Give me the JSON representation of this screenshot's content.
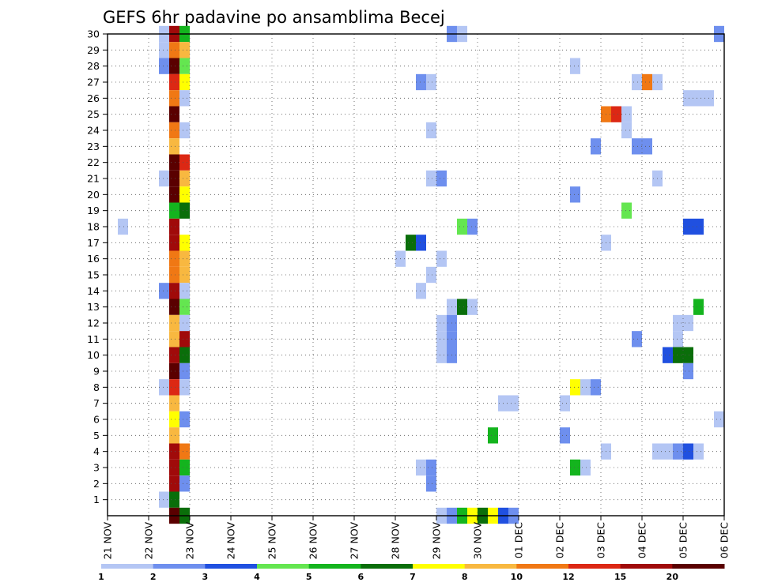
{
  "chart_data": {
    "type": "heatmap",
    "title": "GEFS 6hr padavine po ansamblima Becej",
    "xlabel": "",
    "ylabel": "",
    "x_tick_labels": [
      "21 NOV",
      "22 NOV",
      "23 NOV",
      "24 NOV",
      "25 NOV",
      "26 NOV",
      "27 NOV",
      "28 NOV",
      "29 NOV",
      "30 NOV",
      "01 DEC",
      "02 DEC",
      "03 DEC",
      "04 DEC",
      "05 DEC",
      "06 DEC"
    ],
    "x_range_days": [
      0,
      15
    ],
    "y_tick_labels": [
      "1",
      "2",
      "3",
      "4",
      "5",
      "6",
      "7",
      "8",
      "9",
      "10",
      "11",
      "12",
      "13",
      "14",
      "15",
      "16",
      "17",
      "18",
      "19",
      "20",
      "21",
      "22",
      "23",
      "24",
      "25",
      "26",
      "27",
      "28",
      "29",
      "30"
    ],
    "y_range": [
      0,
      30
    ],
    "step_days": 0.25,
    "grid": true,
    "colorbar": {
      "labels": [
        "1",
        "2",
        "3",
        "4",
        "5",
        "6",
        "7",
        "8",
        "10",
        "12",
        "15",
        "20"
      ],
      "colors": [
        "#b4c6f4",
        "#6e8fee",
        "#2050e0",
        "#64e650",
        "#14b41e",
        "#0a6e0a",
        "#ffff00",
        "#f8b840",
        "#f07814",
        "#dc2814",
        "#a00a0a",
        "#5a0000"
      ]
    },
    "cells": [
      [
        1.25,
        30,
        1
      ],
      [
        1.25,
        29,
        1
      ],
      [
        1.25,
        28,
        2
      ],
      [
        1.25,
        21,
        1
      ],
      [
        1.25,
        14,
        2
      ],
      [
        1.25,
        8,
        1
      ],
      [
        1.25,
        1,
        1
      ],
      [
        1.5,
        30,
        11
      ],
      [
        1.5,
        29,
        9
      ],
      [
        1.5,
        28,
        12
      ],
      [
        1.5,
        27,
        10
      ],
      [
        1.5,
        26,
        9
      ],
      [
        1.5,
        25,
        12
      ],
      [
        1.5,
        24,
        9
      ],
      [
        1.5,
        23,
        8
      ],
      [
        1.5,
        22,
        12
      ],
      [
        1.5,
        21,
        12
      ],
      [
        1.5,
        20,
        12
      ],
      [
        1.5,
        19,
        5
      ],
      [
        1.5,
        18,
        11
      ],
      [
        1.5,
        17,
        11
      ],
      [
        1.5,
        16,
        9
      ],
      [
        1.5,
        15,
        9
      ],
      [
        1.5,
        14,
        11
      ],
      [
        1.5,
        13,
        12
      ],
      [
        1.5,
        12,
        8
      ],
      [
        1.5,
        11,
        8
      ],
      [
        1.5,
        10,
        11
      ],
      [
        1.5,
        9,
        12
      ],
      [
        1.5,
        8,
        10
      ],
      [
        1.5,
        7,
        8
      ],
      [
        1.5,
        6,
        7
      ],
      [
        1.5,
        5,
        8
      ],
      [
        1.5,
        4,
        11
      ],
      [
        1.5,
        3,
        11
      ],
      [
        1.5,
        2,
        11
      ],
      [
        1.5,
        1,
        6
      ],
      [
        1.5,
        0,
        12
      ],
      [
        1.75,
        30,
        5
      ],
      [
        1.75,
        29,
        8
      ],
      [
        1.75,
        28,
        4
      ],
      [
        1.75,
        27,
        7
      ],
      [
        1.75,
        26,
        1
      ],
      [
        1.75,
        24,
        1
      ],
      [
        1.75,
        22,
        10
      ],
      [
        1.75,
        21,
        8
      ],
      [
        1.75,
        20,
        7
      ],
      [
        1.75,
        19,
        6
      ],
      [
        1.75,
        17,
        7
      ],
      [
        1.75,
        16,
        8
      ],
      [
        1.75,
        15,
        8
      ],
      [
        1.75,
        14,
        1
      ],
      [
        1.75,
        13,
        4
      ],
      [
        1.75,
        12,
        1
      ],
      [
        1.75,
        11,
        11
      ],
      [
        1.75,
        10,
        6
      ],
      [
        1.75,
        9,
        2
      ],
      [
        1.75,
        8,
        1
      ],
      [
        1.75,
        6,
        2
      ],
      [
        1.75,
        4,
        9
      ],
      [
        1.75,
        3,
        5
      ],
      [
        1.75,
        2,
        2
      ],
      [
        1.75,
        0,
        6
      ],
      [
        0.25,
        18,
        1
      ],
      [
        7,
        16,
        1
      ],
      [
        7.25,
        17,
        6
      ],
      [
        7.5,
        17,
        3
      ],
      [
        7.5,
        27,
        2
      ],
      [
        7.75,
        27,
        1
      ],
      [
        7.5,
        14,
        1
      ],
      [
        7.5,
        3,
        1
      ],
      [
        7.75,
        3,
        2
      ],
      [
        7.75,
        2,
        2
      ],
      [
        7.75,
        24,
        1
      ],
      [
        7.75,
        21,
        1
      ],
      [
        7.75,
        15,
        1
      ],
      [
        8,
        21,
        2
      ],
      [
        8,
        16,
        1
      ],
      [
        8,
        12,
        1
      ],
      [
        8,
        11,
        1
      ],
      [
        8,
        10,
        1
      ],
      [
        8,
        0,
        1
      ],
      [
        8.25,
        30,
        2
      ],
      [
        8.25,
        13,
        1
      ],
      [
        8.25,
        12,
        2
      ],
      [
        8.25,
        11,
        2
      ],
      [
        8.25,
        10,
        2
      ],
      [
        8.25,
        0,
        2
      ],
      [
        8.5,
        30,
        1
      ],
      [
        8.5,
        18,
        4
      ],
      [
        8.5,
        13,
        6
      ],
      [
        8.5,
        0,
        5
      ],
      [
        8.75,
        18,
        2
      ],
      [
        8.75,
        13,
        1
      ],
      [
        8.75,
        0,
        7
      ],
      [
        9,
        0,
        6
      ],
      [
        9.25,
        0,
        7
      ],
      [
        9.5,
        0,
        3
      ],
      [
        9.75,
        0,
        2
      ],
      [
        9.25,
        5,
        5
      ],
      [
        9.5,
        7,
        1
      ],
      [
        9.75,
        7,
        1
      ],
      [
        11,
        7,
        1
      ],
      [
        11,
        5,
        2
      ],
      [
        11.25,
        28,
        1
      ],
      [
        11.25,
        20,
        2
      ],
      [
        11.25,
        8,
        7
      ],
      [
        11.25,
        3,
        5
      ],
      [
        11.5,
        8,
        1
      ],
      [
        11.5,
        3,
        1
      ],
      [
        11.75,
        23,
        2
      ],
      [
        11.75,
        8,
        2
      ],
      [
        12,
        25,
        9
      ],
      [
        12,
        17,
        1
      ],
      [
        12,
        4,
        1
      ],
      [
        12.25,
        25,
        10
      ],
      [
        12.5,
        25,
        1
      ],
      [
        12.5,
        24,
        1
      ],
      [
        12.5,
        19,
        4
      ],
      [
        12.75,
        27,
        1
      ],
      [
        12.75,
        23,
        2
      ],
      [
        12.75,
        11,
        2
      ],
      [
        13,
        27,
        9
      ],
      [
        13,
        23,
        2
      ],
      [
        13.25,
        27,
        1
      ],
      [
        13.25,
        21,
        1
      ],
      [
        13.25,
        4,
        1
      ],
      [
        13.5,
        10,
        3
      ],
      [
        13.5,
        4,
        1
      ],
      [
        13.75,
        12,
        1
      ],
      [
        13.75,
        11,
        1
      ],
      [
        13.75,
        10,
        6
      ],
      [
        13.75,
        4,
        2
      ],
      [
        14,
        26,
        1
      ],
      [
        14,
        18,
        3
      ],
      [
        14,
        12,
        1
      ],
      [
        14,
        10,
        6
      ],
      [
        14,
        9,
        2
      ],
      [
        14,
        4,
        3
      ],
      [
        14.25,
        26,
        1
      ],
      [
        14.25,
        18,
        3
      ],
      [
        14.25,
        13,
        5
      ],
      [
        14.25,
        4,
        1
      ],
      [
        14.5,
        26,
        1
      ],
      [
        14.75,
        30,
        2
      ],
      [
        14.75,
        6,
        1
      ]
    ]
  }
}
